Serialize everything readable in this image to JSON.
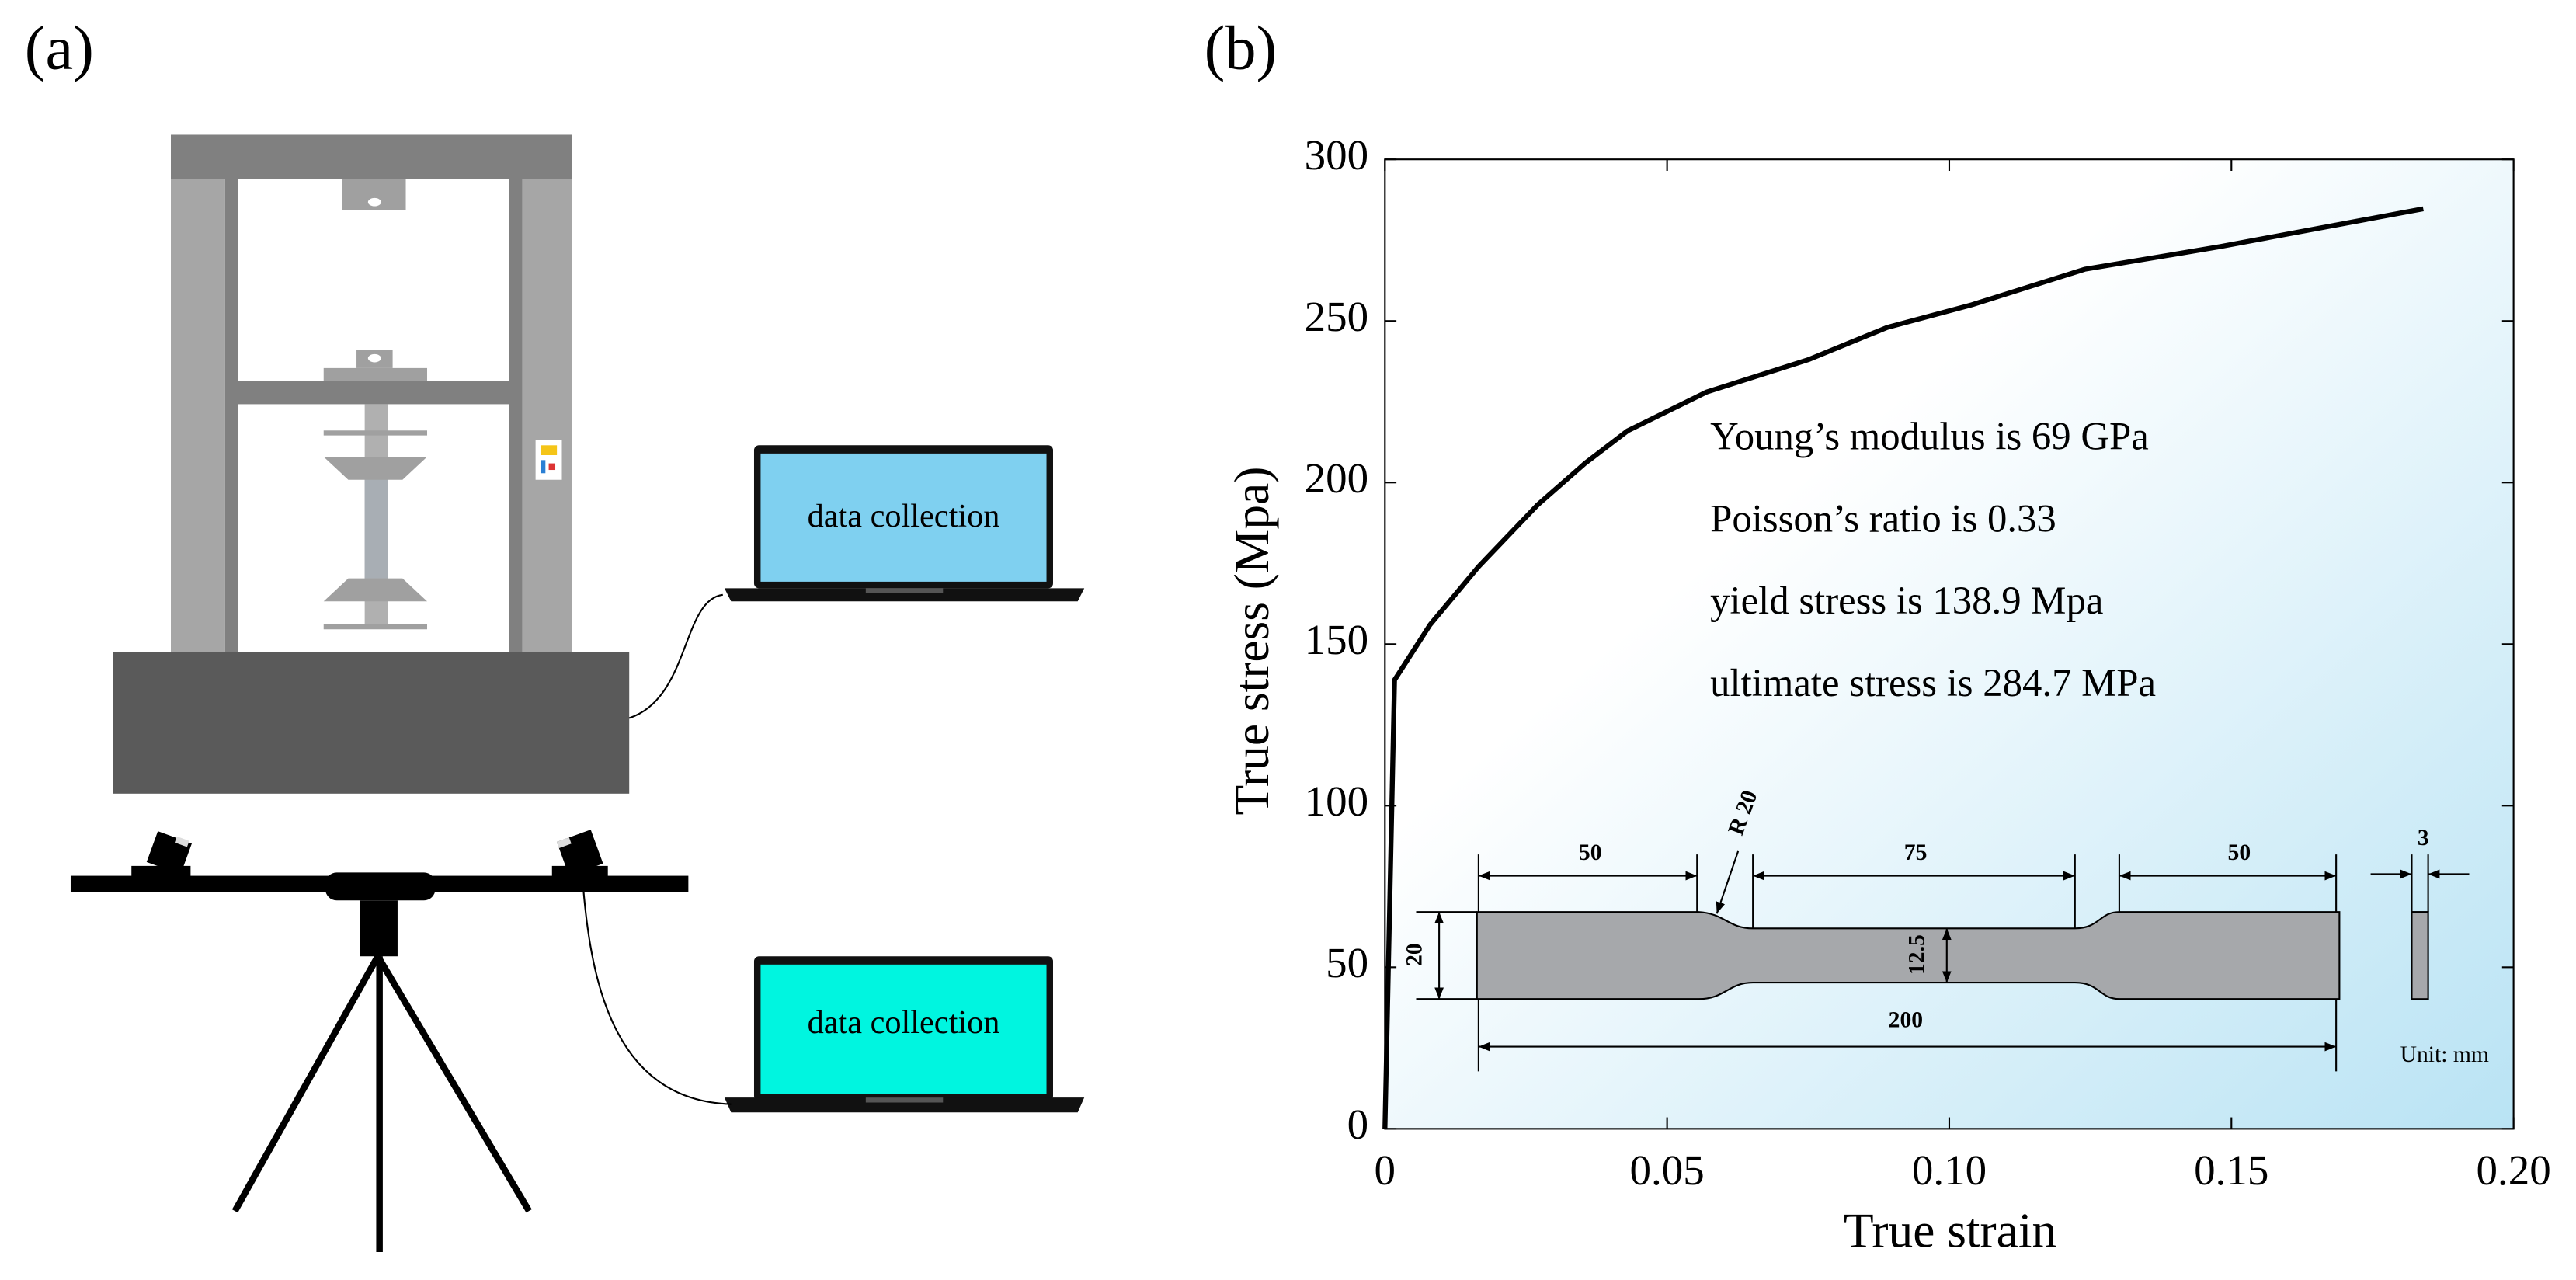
{
  "panel_a": {
    "label": "(a)",
    "screens": [
      "data collection",
      "data collection"
    ]
  },
  "chart_data": {
    "type": "line",
    "panel_label": "(b)",
    "x_label": "True strain",
    "y_label": "True stress (Mpa)",
    "annotations": [
      "Young’s modulus is 69 GPa",
      "Poisson’s ratio  is 0.33",
      "yield stress is 138.9 Mpa",
      "ultimate stress is 284.7 MPa"
    ],
    "specimen_labels": [
      "50",
      "R 20",
      "75",
      "50",
      "20",
      "12.5",
      "200",
      "3",
      "Unit: mm"
    ],
    "x": [
      0,
      0.0017,
      0.008,
      0.0166,
      0.027,
      0.0355,
      0.043,
      0.057,
      0.075,
      0.089,
      0.104,
      0.124,
      0.148,
      0.184
    ],
    "series": [
      {
        "color": "#000000",
        "values": [
          0,
          138.9,
          156,
          174,
          193,
          206,
          216,
          228,
          238,
          248,
          255,
          266,
          273,
          284.7
        ]
      }
    ],
    "xlim": [
      0,
      0.2
    ],
    "xticks": [
      0,
      0.05,
      {
        "value": 0.1,
        "label": "0.10"
      },
      0.15,
      {
        "value": 0.2,
        "label": "0.20"
      }
    ],
    "ylim": [
      0,
      300
    ],
    "yticks": [
      0,
      50,
      100,
      150,
      200,
      250,
      300
    ]
  }
}
